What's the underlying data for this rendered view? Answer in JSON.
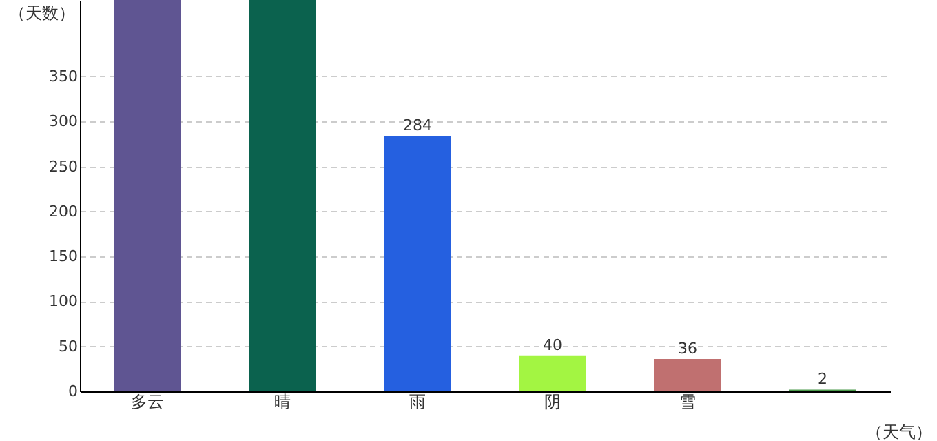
{
  "chart_data": {
    "type": "bar",
    "categories": [
      "多云",
      "晴",
      "雨",
      "阴",
      "雪",
      null
    ],
    "values": [
      435,
      435,
      284,
      40,
      36,
      2
    ],
    "colors": [
      "#5f5592",
      "#0b624e",
      "#2560e0",
      "#a3f542",
      "#c07070",
      "#4a9a4a"
    ],
    "value_labels": [
      null,
      null,
      "284",
      "40",
      "36",
      "2"
    ],
    "ylabel": "（天数）",
    "xlabel": "（天气）",
    "ylim": [
      0,
      435
    ],
    "yticks": [
      0,
      50,
      100,
      150,
      200,
      250,
      300,
      350
    ],
    "grid": "y",
    "legend": false
  }
}
